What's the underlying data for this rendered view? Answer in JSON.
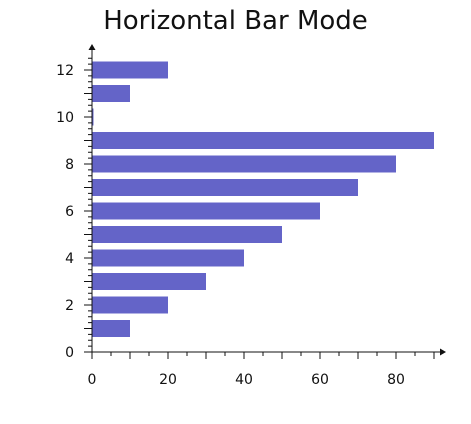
{
  "chart_data": {
    "type": "bar",
    "orientation": "horizontal",
    "title": "Horizontal Bar Mode",
    "xlabel": "",
    "ylabel": "",
    "xlim": [
      0,
      90
    ],
    "ylim": [
      0,
      12.5
    ],
    "x_ticks": [
      0,
      20,
      40,
      60,
      80
    ],
    "y_ticks": [
      0,
      2,
      4,
      6,
      8,
      10,
      12
    ],
    "grid": false,
    "legend": "none",
    "bar_color": "#6464c8",
    "categories": [
      1,
      2,
      3,
      4,
      5,
      6,
      7,
      8,
      9,
      10,
      11,
      12
    ],
    "values": [
      10,
      20,
      30,
      40,
      50,
      60,
      70,
      80,
      90,
      0,
      10,
      20
    ]
  }
}
